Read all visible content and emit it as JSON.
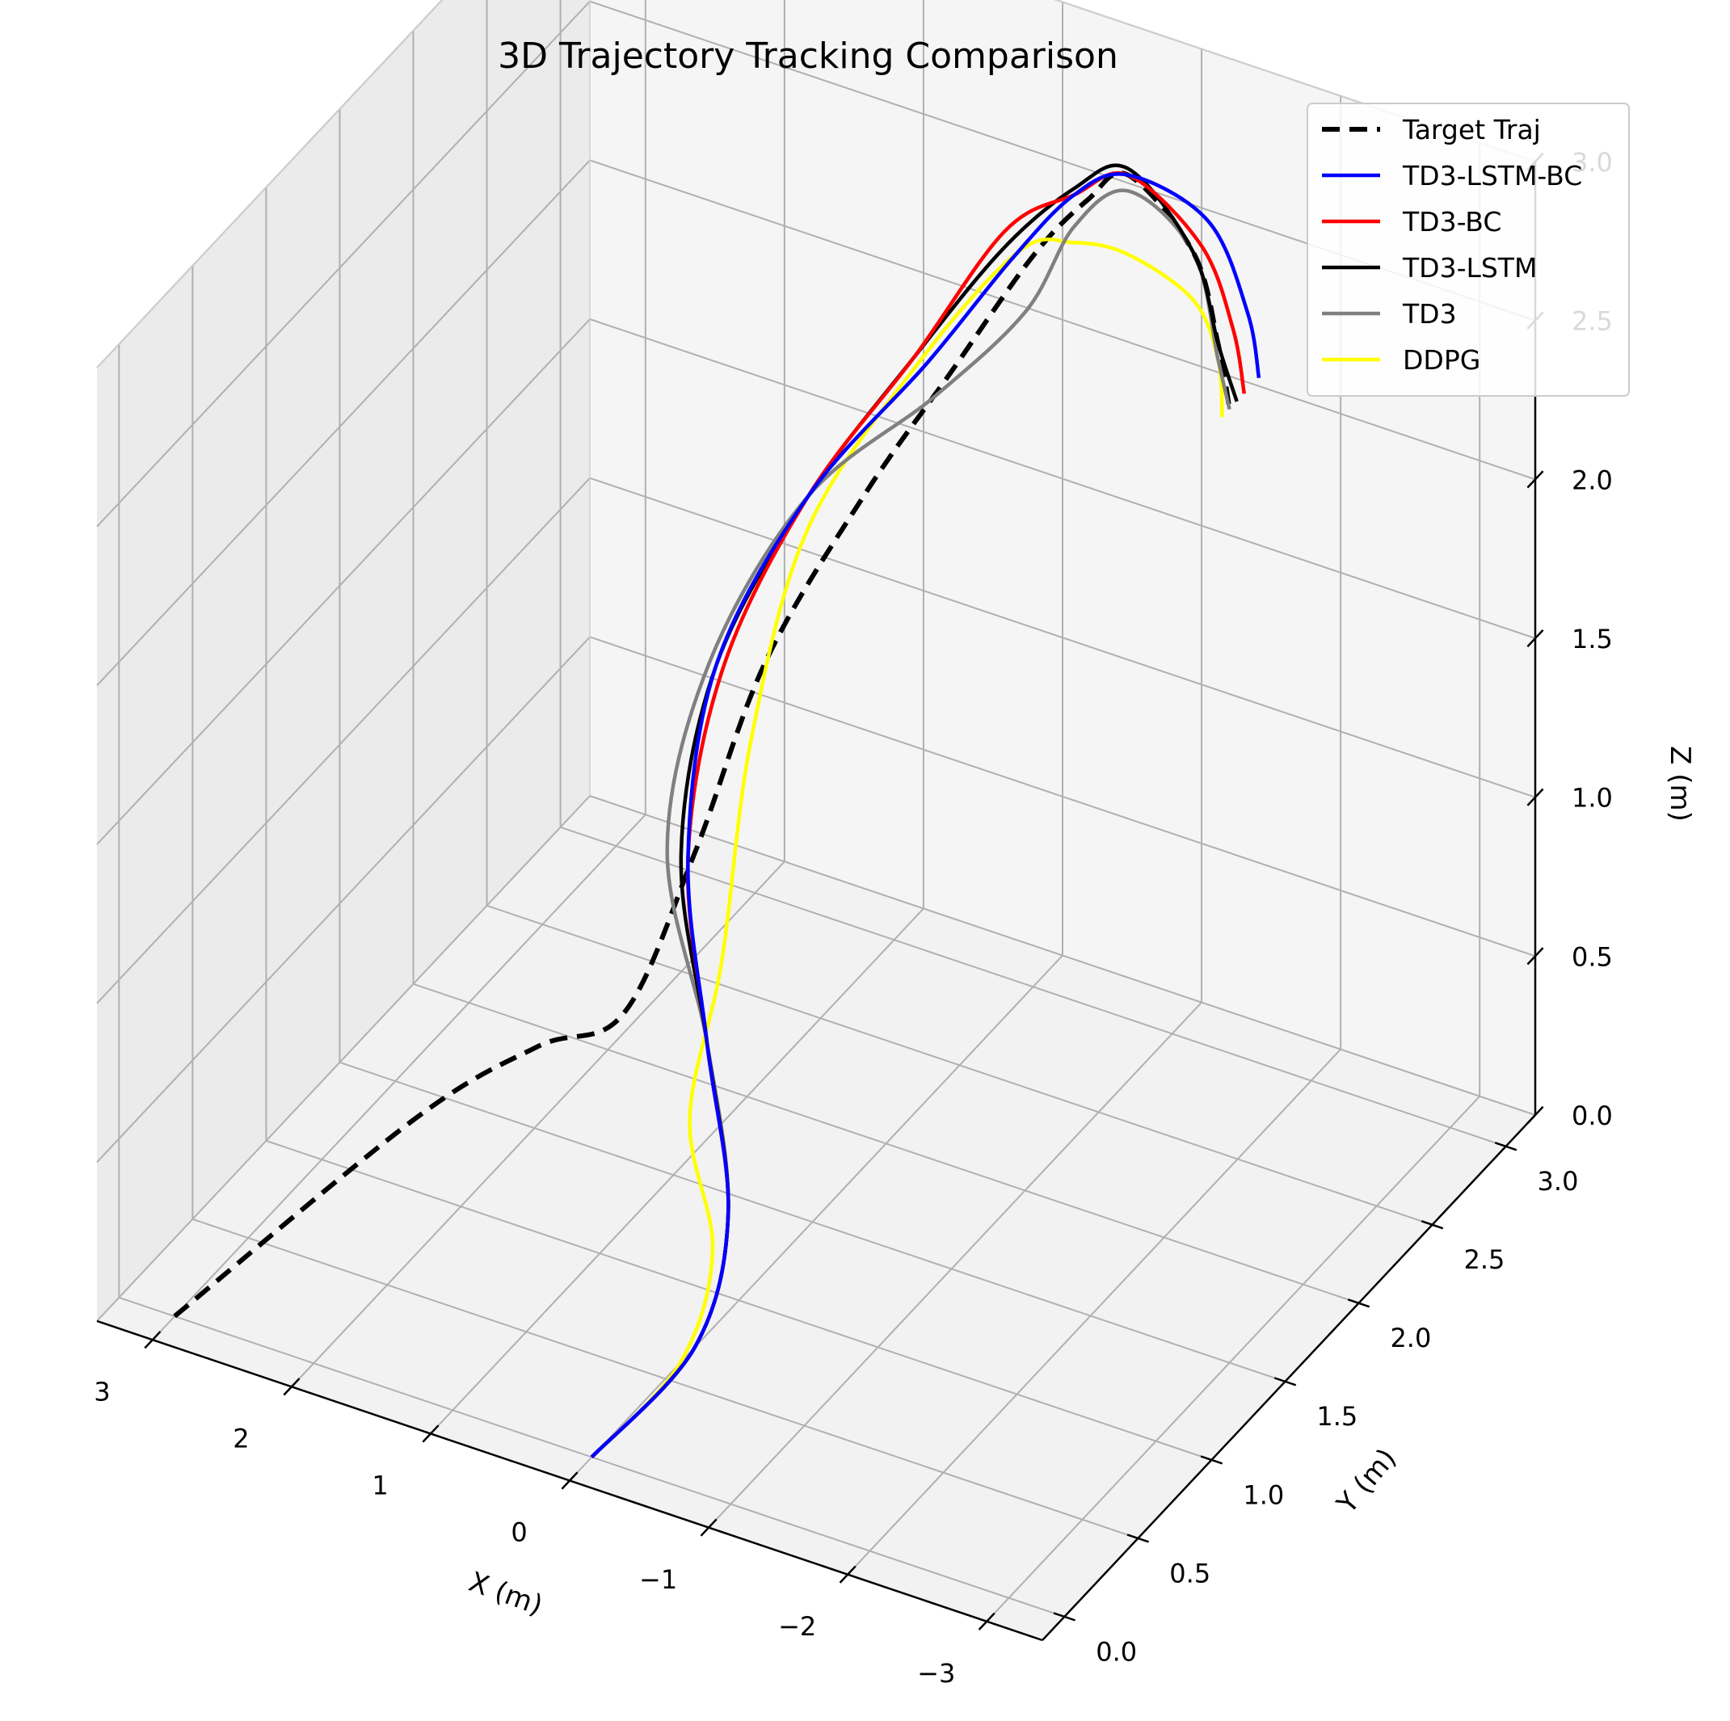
{
  "chart_data": {
    "type": "line",
    "projection": "3d",
    "title": "3D Trajectory Tracking Comparison",
    "xlabel": "X (m)",
    "ylabel": "Y (m)",
    "zlabel": "Z (m)",
    "xlim": [
      -3.4,
      3.4
    ],
    "ylim": [
      -0.15,
      3.2
    ],
    "zlim": [
      0,
      3
    ],
    "xticks": [
      -3,
      -2,
      -1,
      0,
      1,
      2,
      3
    ],
    "yticks": [
      0.0,
      0.5,
      1.0,
      1.5,
      2.0,
      2.5,
      3.0
    ],
    "zticks": [
      0.0,
      0.5,
      1.0,
      1.5,
      2.0,
      2.5,
      3.0
    ],
    "xtick_labels": [
      "−3",
      "−2",
      "−1",
      "0",
      "1",
      "2",
      "3"
    ],
    "ytick_labels": [
      "0.0",
      "0.5",
      "1.0",
      "1.5",
      "2.0",
      "2.5",
      "3.0"
    ],
    "ztick_labels": [
      "0.0",
      "0.5",
      "1.0",
      "1.5",
      "2.0",
      "2.5",
      "3.0"
    ],
    "grid": true,
    "legend_position": "top-right",
    "series": [
      {
        "name": "Target Traj",
        "color": "#000000",
        "style": "dashed",
        "points": [
          [
            3.0,
            0.0,
            0.0
          ],
          [
            2.7,
            1.35,
            0.0
          ],
          [
            2.4,
            1.9,
            0.0
          ],
          [
            2.1,
            2.2,
            0.0
          ],
          [
            1.8,
            2.4,
            0.45
          ],
          [
            1.5,
            2.6,
            1.0
          ],
          [
            1.0,
            2.8,
            1.5
          ],
          [
            0.5,
            2.9,
            1.9
          ],
          [
            0.0,
            3.0,
            2.3
          ],
          [
            -0.5,
            2.9,
            2.6
          ],
          [
            -1.0,
            2.7,
            2.85
          ],
          [
            -2.0,
            2.2,
            3.0
          ],
          [
            -2.6,
            1.8,
            3.0
          ],
          [
            -3.0,
            1.5,
            3.0
          ]
        ]
      },
      {
        "name": "TD3-LSTM-BC",
        "color": "#0000ff",
        "style": "solid",
        "points": [
          [
            0.0,
            0.0,
            0.0
          ],
          [
            0.0,
            0.7,
            0.0
          ],
          [
            0.5,
            1.4,
            0.0
          ],
          [
            1.5,
            2.2,
            0.0
          ],
          [
            1.9,
            2.45,
            0.4
          ],
          [
            1.75,
            2.5,
            1.0
          ],
          [
            1.3,
            2.7,
            1.5
          ],
          [
            0.6,
            2.85,
            1.95
          ],
          [
            0.1,
            2.95,
            2.3
          ],
          [
            -0.4,
            2.9,
            2.6
          ],
          [
            -1.0,
            2.7,
            2.85
          ],
          [
            -2.0,
            2.3,
            3.05
          ],
          [
            -2.6,
            2.0,
            3.0
          ],
          [
            -3.0,
            1.7,
            3.0
          ]
        ]
      },
      {
        "name": "TD3-BC",
        "color": "#ff0000",
        "style": "solid",
        "points": [
          [
            0.0,
            0.0,
            0.0
          ],
          [
            0.0,
            0.7,
            0.0
          ],
          [
            0.5,
            1.4,
            0.0
          ],
          [
            1.5,
            2.2,
            0.0
          ],
          [
            1.9,
            2.45,
            0.4
          ],
          [
            1.7,
            2.5,
            1.0
          ],
          [
            1.3,
            2.7,
            1.5
          ],
          [
            0.7,
            2.85,
            1.95
          ],
          [
            0.2,
            3.0,
            2.35
          ],
          [
            -0.4,
            2.9,
            2.6
          ],
          [
            -1.0,
            2.7,
            2.85
          ],
          [
            -2.0,
            2.25,
            3.0
          ],
          [
            -2.6,
            1.9,
            3.0
          ],
          [
            -3.0,
            1.6,
            3.0
          ]
        ]
      },
      {
        "name": "TD3-LSTM",
        "color": "#000000",
        "style": "solid",
        "points": [
          [
            0.0,
            0.0,
            0.0
          ],
          [
            0.0,
            0.7,
            0.0
          ],
          [
            0.5,
            1.4,
            0.0
          ],
          [
            1.5,
            2.2,
            0.0
          ],
          [
            1.95,
            2.45,
            0.4
          ],
          [
            1.75,
            2.5,
            1.0
          ],
          [
            1.3,
            2.7,
            1.5
          ],
          [
            0.7,
            2.85,
            1.95
          ],
          [
            0.2,
            2.98,
            2.3
          ],
          [
            -0.4,
            2.9,
            2.62
          ],
          [
            -1.0,
            2.7,
            2.87
          ],
          [
            -2.0,
            2.2,
            3.0
          ],
          [
            -2.6,
            1.8,
            3.0
          ],
          [
            -3.0,
            1.55,
            3.0
          ]
        ]
      },
      {
        "name": "TD3",
        "color": "#808080",
        "style": "solid",
        "points": [
          [
            0.0,
            0.0,
            0.0
          ],
          [
            0.0,
            0.7,
            0.0
          ],
          [
            0.5,
            1.4,
            0.0
          ],
          [
            1.5,
            2.2,
            0.0
          ],
          [
            2.05,
            2.45,
            0.4
          ],
          [
            1.8,
            2.5,
            1.0
          ],
          [
            1.3,
            2.7,
            1.5
          ],
          [
            0.55,
            2.85,
            1.85
          ],
          [
            0.0,
            2.95,
            2.15
          ],
          [
            -0.4,
            2.9,
            2.5
          ],
          [
            -1.0,
            2.7,
            2.8
          ],
          [
            -2.0,
            2.2,
            3.0
          ],
          [
            -2.6,
            1.8,
            2.95
          ],
          [
            -3.0,
            1.5,
            3.0
          ]
        ]
      },
      {
        "name": "DDPG",
        "color": "#ffff00",
        "style": "solid",
        "points": [
          [
            0.0,
            0.0,
            0.0
          ],
          [
            0.0,
            0.6,
            0.0
          ],
          [
            0.4,
            1.2,
            0.0
          ],
          [
            1.2,
            1.8,
            0.0
          ],
          [
            1.5,
            2.3,
            0.2
          ],
          [
            1.5,
            2.5,
            0.8
          ],
          [
            1.3,
            2.7,
            1.4
          ],
          [
            0.65,
            2.85,
            1.95
          ],
          [
            0.1,
            3.0,
            2.3
          ],
          [
            -0.4,
            2.9,
            2.45
          ],
          [
            -1.0,
            2.7,
            2.6
          ],
          [
            -2.0,
            2.2,
            2.85
          ],
          [
            -2.6,
            1.8,
            2.95
          ],
          [
            -3.0,
            1.45,
            3.0
          ]
        ]
      }
    ]
  }
}
